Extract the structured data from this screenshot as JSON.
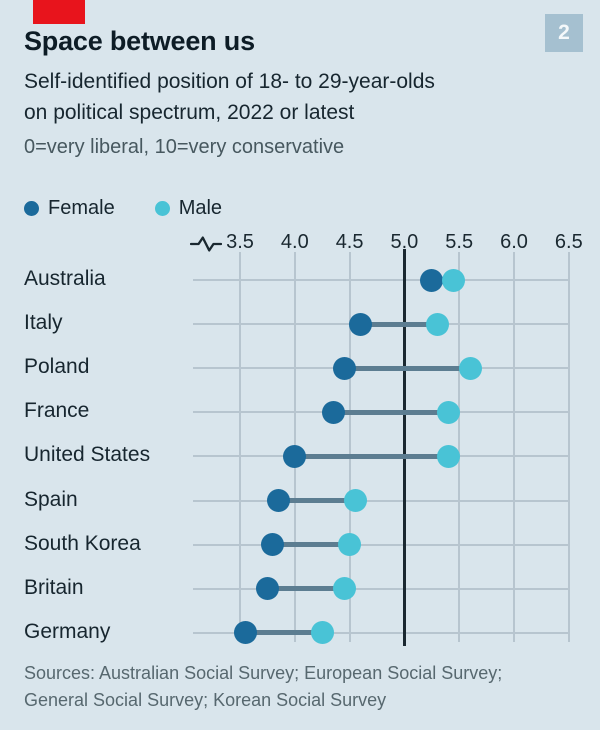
{
  "brand": {
    "badge": "2"
  },
  "header": {
    "title": "Space between us",
    "subtitle_line1": "Self-identified position of 18- to 29-year-olds",
    "subtitle_line2": "on political spectrum, 2022 or latest",
    "note": "0=very liberal, 10=very conservative"
  },
  "footer": {
    "line1": "Sources: Australian Social Survey; European Social Survey;",
    "line2": "General Social Survey; Korean Social Survey"
  },
  "colors": {
    "background": "#d9e5ec",
    "red_tab": "#e8141c",
    "badge_bg": "#a5c0d0",
    "female": "#1b6a9b",
    "male": "#49c3d6",
    "connector": "#5c7d91",
    "grid": "#b7c5cf",
    "axis_dark": "#1a2830",
    "text_dark": "#17262f"
  },
  "chart_data": {
    "type": "scatter",
    "variant": "dumbbell",
    "title": "Space between us",
    "subtitle": "Self-identified position of 18- to 29-year-olds on political spectrum, 2022 or latest",
    "scale_note": "0=very liberal, 10=very conservative",
    "xlabel": "",
    "ylabel": "",
    "x_ticks": [
      3.5,
      4.0,
      4.5,
      5.0,
      5.5,
      6.0,
      6.5
    ],
    "x_range": [
      3.5,
      6.5
    ],
    "axis_break": true,
    "reference_line_x": 5.0,
    "grid": true,
    "legend_position": "top-left",
    "categories": [
      "Australia",
      "Italy",
      "Poland",
      "France",
      "United States",
      "Spain",
      "South Korea",
      "Britain",
      "Germany"
    ],
    "series": [
      {
        "name": "Female",
        "values": [
          5.25,
          4.6,
          4.45,
          4.35,
          4.0,
          3.85,
          3.8,
          3.75,
          3.55
        ]
      },
      {
        "name": "Male",
        "values": [
          5.45,
          5.3,
          5.6,
          5.4,
          5.4,
          4.55,
          4.5,
          4.45,
          4.25
        ]
      }
    ]
  }
}
